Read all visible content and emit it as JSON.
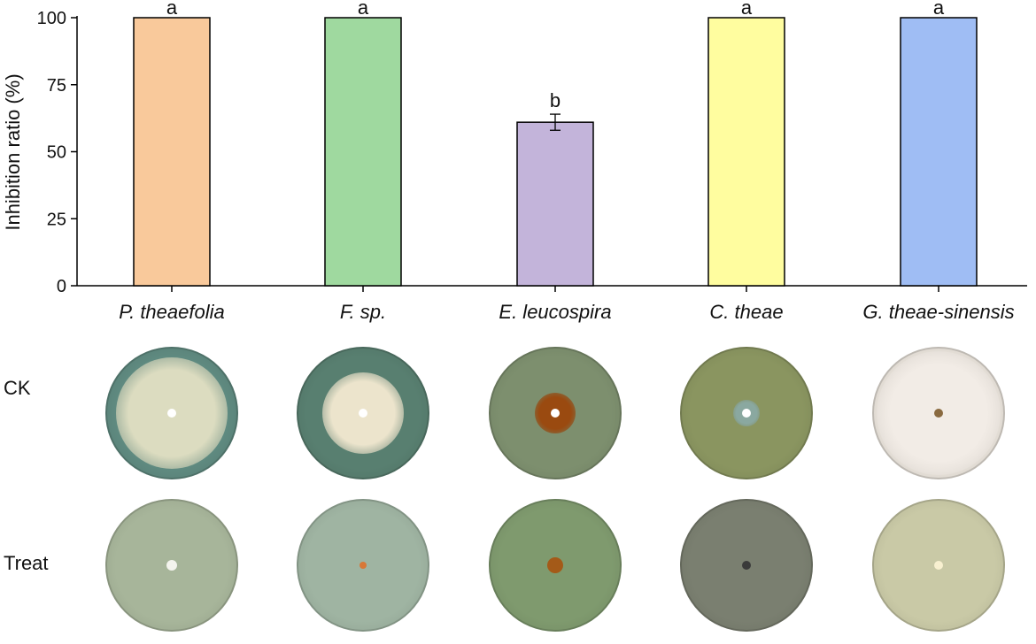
{
  "chart_data": {
    "type": "bar",
    "ylabel": "Inhibition ratio (%)",
    "xlabel": "",
    "ylim": [
      0,
      100
    ],
    "yticks": [
      0,
      25,
      50,
      75,
      100
    ],
    "categories": [
      "P. theaefolia",
      "F. sp.",
      "E. leucospira",
      "C. theae",
      "G. theae-sinensis"
    ],
    "values": [
      100,
      100,
      61,
      100,
      100
    ],
    "error": [
      0,
      0,
      3,
      0,
      0
    ],
    "significance": [
      "a",
      "a",
      "b",
      "a",
      "a"
    ],
    "colors": [
      "#F9C99B",
      "#9FD99F",
      "#C3B4DA",
      "#FFFD9F",
      "#9FBDF4"
    ],
    "grid": false
  },
  "photo_rows": {
    "ck_label": "CK",
    "treat_label": "Treat"
  },
  "dish_colors": {
    "ck": [
      "#5f8a80",
      "#587f70",
      "#7d8f6e",
      "#8a9560",
      "#e8e2da"
    ],
    "treat": [
      "#a7b59a",
      "#9fb4a2",
      "#7f9a6e",
      "#7a7f70",
      "#c9c9a6"
    ],
    "ck_colony": [
      "#dcdcc0",
      "#ece4cc",
      "#9a4a10",
      "#8aa8a0",
      "#f2ece6"
    ],
    "treat_colony": [
      "#f4f4ee",
      "#d87838",
      "#a45a18",
      "#3a3a3a",
      "#f8f0d0"
    ]
  }
}
